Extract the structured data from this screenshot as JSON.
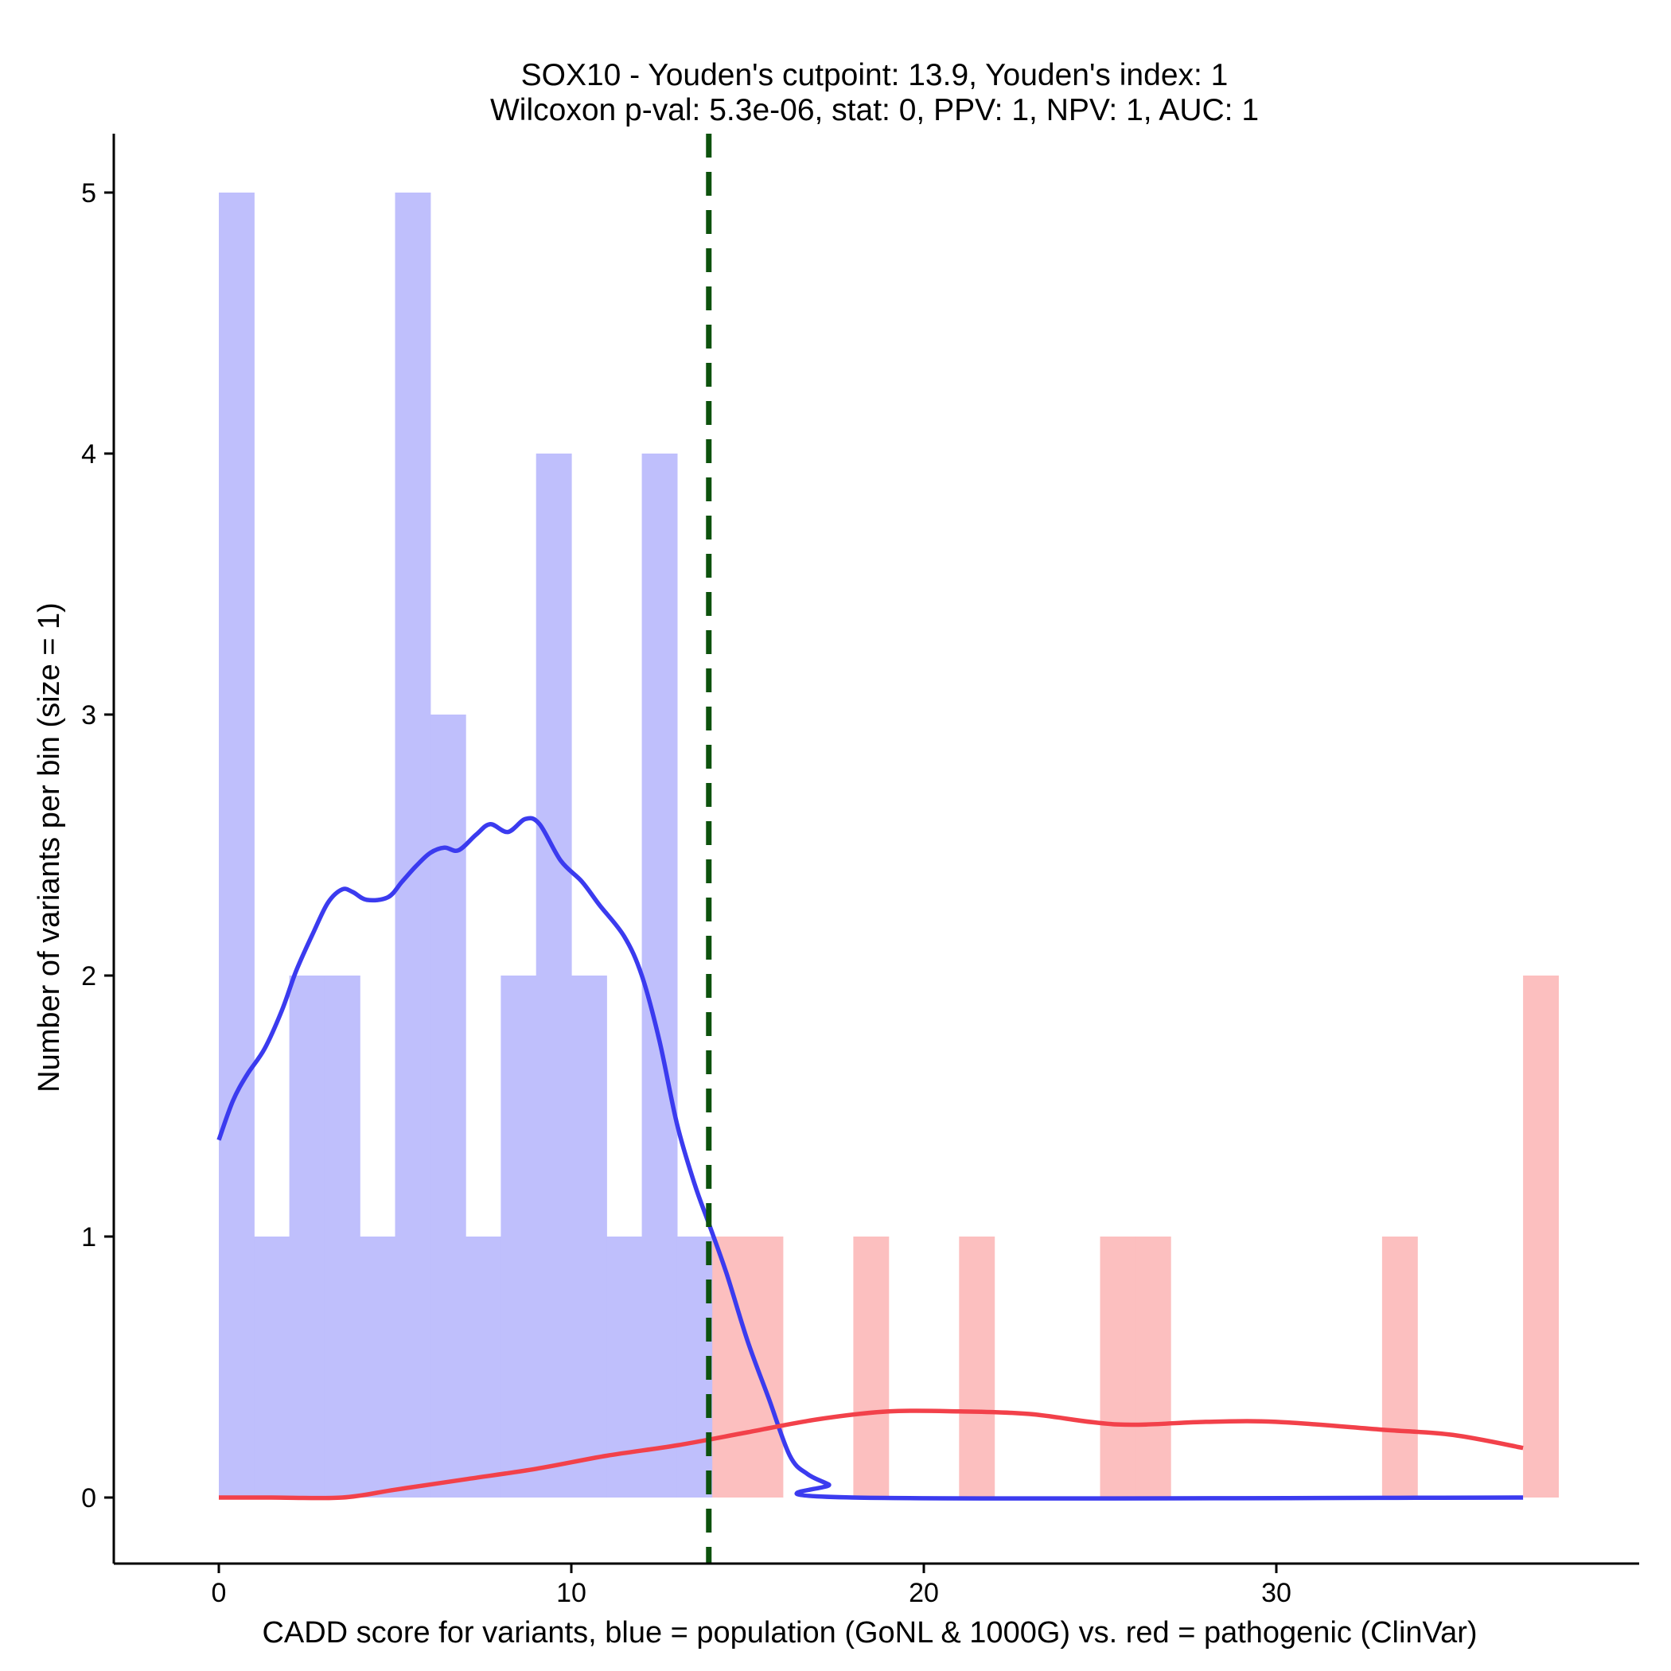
{
  "chart_data": {
    "type": "bar",
    "title": "SOX10 - Youden's cutpoint: 13.9, Youden's index: 1",
    "subtitle": "Wilcoxon p-val: 5.3e-06, stat: 0, PPV: 1, NPV: 1, AUC: 1",
    "xlabel": "CADD score for variants, blue = population (GoNL & 1000G) vs. red = pathogenic (ClinVar)",
    "ylabel": "Number of variants per bin (size = 1)",
    "xlim": [
      -3,
      40
    ],
    "ylim": [
      -0.25,
      5.25
    ],
    "x_ticks": [
      0,
      10,
      20,
      30
    ],
    "y_ticks": [
      0,
      1,
      2,
      3,
      4,
      5
    ],
    "bin_width": 1,
    "cutpoint": 13.9,
    "colors": {
      "population": "#bfbffc",
      "pathogenic": "#fcbfbf",
      "population_density": "#3b3bef",
      "pathogenic_density": "#f2414a",
      "cutpoint_line": "#0d520d"
    },
    "series": [
      {
        "name": "population (GoNL & 1000G)",
        "bins": [
          [
            0,
            5
          ],
          [
            1,
            1
          ],
          [
            2,
            2
          ],
          [
            3,
            2
          ],
          [
            4,
            1
          ],
          [
            5,
            5
          ],
          [
            6,
            3
          ],
          [
            7,
            1
          ],
          [
            8,
            2
          ],
          [
            9,
            4
          ],
          [
            10,
            2
          ],
          [
            11,
            1
          ],
          [
            12,
            4
          ],
          [
            13,
            1
          ]
        ]
      },
      {
        "name": "pathogenic (ClinVar)",
        "bins": [
          [
            14,
            1
          ],
          [
            15,
            1
          ],
          [
            18,
            1
          ],
          [
            21,
            1
          ],
          [
            25,
            1
          ],
          [
            26,
            1
          ],
          [
            33,
            1
          ],
          [
            37,
            2
          ]
        ]
      }
    ],
    "density": [
      {
        "name": "population density",
        "points": [
          [
            0,
            1.37
          ],
          [
            0.4,
            1.52
          ],
          [
            0.8,
            1.62
          ],
          [
            1.3,
            1.72
          ],
          [
            1.8,
            1.87
          ],
          [
            2.2,
            2.02
          ],
          [
            2.7,
            2.17
          ],
          [
            3.1,
            2.28
          ],
          [
            3.5,
            2.33
          ],
          [
            3.8,
            2.32
          ],
          [
            4.2,
            2.29
          ],
          [
            4.8,
            2.3
          ],
          [
            5.2,
            2.36
          ],
          [
            5.6,
            2.42
          ],
          [
            6,
            2.47
          ],
          [
            6.4,
            2.49
          ],
          [
            6.8,
            2.48
          ],
          [
            7.3,
            2.54
          ],
          [
            7.7,
            2.58
          ],
          [
            8.2,
            2.55
          ],
          [
            8.7,
            2.6
          ],
          [
            9.1,
            2.58
          ],
          [
            9.7,
            2.44
          ],
          [
            10.3,
            2.36
          ],
          [
            10.8,
            2.27
          ],
          [
            11.5,
            2.15
          ],
          [
            12,
            2.0
          ],
          [
            12.5,
            1.75
          ],
          [
            13,
            1.43
          ],
          [
            13.5,
            1.2
          ],
          [
            13.9,
            1.05
          ],
          [
            14.4,
            0.86
          ],
          [
            15,
            0.6
          ],
          [
            15.6,
            0.38
          ],
          [
            16.2,
            0.16
          ],
          [
            16.7,
            0.09
          ],
          [
            17.3,
            0.05
          ],
          [
            18,
            0
          ],
          [
            37,
            0
          ]
        ]
      },
      {
        "name": "pathogenic density",
        "points": [
          [
            0,
            0
          ],
          [
            1.5,
            0
          ],
          [
            3.5,
            0
          ],
          [
            5,
            0.03
          ],
          [
            7,
            0.07
          ],
          [
            9,
            0.11
          ],
          [
            11,
            0.16
          ],
          [
            13,
            0.2
          ],
          [
            15,
            0.25
          ],
          [
            17,
            0.3
          ],
          [
            19,
            0.33
          ],
          [
            21,
            0.33
          ],
          [
            23,
            0.32
          ],
          [
            25.5,
            0.28
          ],
          [
            28,
            0.29
          ],
          [
            30,
            0.29
          ],
          [
            33,
            0.26
          ],
          [
            35,
            0.24
          ],
          [
            37,
            0.19
          ]
        ]
      }
    ]
  }
}
